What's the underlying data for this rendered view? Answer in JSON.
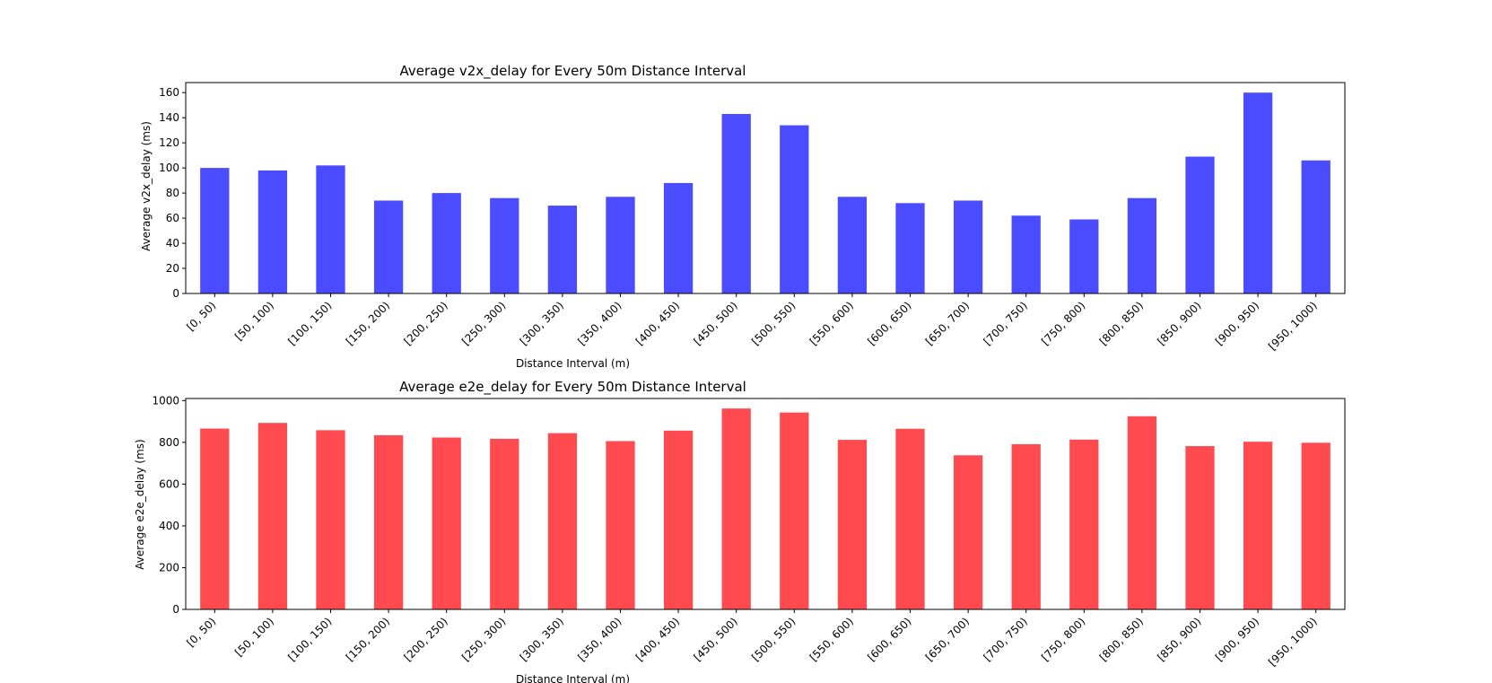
{
  "chart_data": [
    {
      "type": "bar",
      "title": "Average v2x_delay for Every 50m Distance Interval",
      "xlabel": "Distance Interval (m)",
      "ylabel": "Average v2x_delay (ms)",
      "categories": [
        "[0, 50)",
        "[50, 100)",
        "[100, 150)",
        "[150, 200)",
        "[200, 250)",
        "[250, 300)",
        "[300, 350)",
        "[350, 400)",
        "[400, 450)",
        "[450, 500)",
        "[500, 550)",
        "[550, 600)",
        "[600, 650)",
        "[650, 700)",
        "[700, 750)",
        "[750, 800)",
        "[800, 850)",
        "[850, 900)",
        "[900, 950)",
        "[950, 1000)"
      ],
      "values": [
        100,
        98,
        102,
        74,
        80,
        76,
        70,
        77,
        88,
        143,
        134,
        77,
        72,
        74,
        62,
        59,
        76,
        109,
        160,
        106
      ],
      "ylim": [
        0,
        168
      ],
      "yticks": [
        0,
        20,
        40,
        60,
        80,
        100,
        120,
        140,
        160
      ],
      "color": "#4b4bff",
      "grid": false
    },
    {
      "type": "bar",
      "title": "Average e2e_delay for Every 50m Distance Interval",
      "xlabel": "Distance Interval (m)",
      "ylabel": "Average e2e_delay (ms)",
      "categories": [
        "[0, 50)",
        "[50, 100)",
        "[100, 150)",
        "[150, 200)",
        "[200, 250)",
        "[250, 300)",
        "[300, 350)",
        "[350, 400)",
        "[400, 450)",
        "[450, 500)",
        "[500, 550)",
        "[550, 600)",
        "[600, 650)",
        "[650, 700)",
        "[700, 750)",
        "[750, 800)",
        "[800, 850)",
        "[850, 900)",
        "[900, 950)",
        "[950, 1000)"
      ],
      "values": [
        866,
        893,
        858,
        834,
        823,
        817,
        844,
        806,
        856,
        962,
        943,
        812,
        865,
        738,
        791,
        813,
        925,
        782,
        803,
        798
      ],
      "ylim": [
        0,
        1010
      ],
      "yticks": [
        0,
        200,
        400,
        600,
        800,
        1000
      ],
      "color": "#ff4b4f",
      "grid": false
    }
  ]
}
